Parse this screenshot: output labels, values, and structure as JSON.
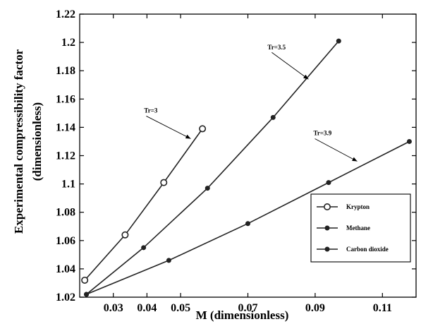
{
  "chart_data": {
    "type": "line",
    "title": "",
    "xlabel": "M (dimensionless)",
    "ylabel_line1": "Experimental compressibility factor",
    "ylabel_line2": "(dimensionless)",
    "xlim": [
      0.02,
      0.12
    ],
    "ylim": [
      1.02,
      1.22
    ],
    "xticks": [
      "0.03",
      "0.04",
      "0.05",
      "0.07",
      "0.09",
      "0.11"
    ],
    "yticks": [
      "1.02",
      "1.04",
      "1.06",
      "1.08",
      "1.1",
      "1.12",
      "1.14",
      "1.16",
      "1.18",
      "1.2",
      "1.22"
    ],
    "grid": false,
    "legend_position": "right",
    "series": [
      {
        "name": "Krypton",
        "marker": "open-circle",
        "color": "#222222",
        "x": [
          0.0215,
          0.0335,
          0.045,
          0.0565
        ],
        "y": [
          1.032,
          1.064,
          1.101,
          1.139
        ]
      },
      {
        "name": "Methane",
        "marker": "filled-circle",
        "color": "#222222",
        "x": [
          0.022,
          0.039,
          0.058,
          0.0775,
          0.097
        ],
        "y": [
          1.022,
          1.055,
          1.097,
          1.147,
          1.201
        ]
      },
      {
        "name": "Carbon dioxide",
        "marker": "filled-circle",
        "color": "#222222",
        "x": [
          0.022,
          0.0465,
          0.07,
          0.094,
          0.118
        ],
        "y": [
          1.022,
          1.046,
          1.072,
          1.101,
          1.13
        ]
      }
    ],
    "annotations": [
      {
        "text": "Tr=3",
        "x": 0.053,
        "y": 1.132
      },
      {
        "text": "Tr=3.5",
        "x": 0.088,
        "y": 1.174
      },
      {
        "text": "Tr=3.9",
        "x": 0.1025,
        "y": 1.116
      }
    ]
  }
}
